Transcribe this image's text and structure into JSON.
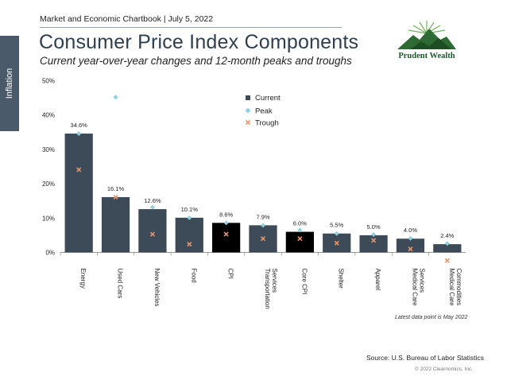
{
  "header": {
    "top_line": "Market and Economic Chartbook | July 5, 2022",
    "section_tab": "Inflation",
    "logo_text": "Prudent Wealth"
  },
  "footer": {
    "footnote": "Latest data point is May 2022",
    "source": "Source: U.S. Bureau of Labor Statistics",
    "copyright": "© 2022 Clearnomics, Inc."
  },
  "colors": {
    "current": "#3d4a58",
    "cpi_highlight": "#000000",
    "peak": "#8fd0dc",
    "trough": "#e8956a"
  },
  "chart_data": {
    "type": "bar",
    "title": "Consumer Price Index Components",
    "subtitle": "Current year-over-year changes and 12-month peaks and troughs",
    "ylim": [
      0,
      50
    ],
    "yticks": [
      "0%",
      "10%",
      "20%",
      "30%",
      "40%",
      "50%"
    ],
    "ytick_values": [
      0,
      10,
      20,
      30,
      40,
      50
    ],
    "legend": [
      "Current",
      "Peak",
      "Trough"
    ],
    "legend_position": "top-center",
    "categories": [
      "Energy",
      "Used Cars",
      "New Vehicles",
      "Food",
      "CPI",
      "Transportation Services",
      "Core CPI",
      "Shelter",
      "Apparel",
      "Medical Care Services",
      "Medical Care Commodities"
    ],
    "category_lines": [
      [
        "Energy"
      ],
      [
        "Used Cars"
      ],
      [
        "New Vehicles"
      ],
      [
        "Food"
      ],
      [
        "CPI"
      ],
      [
        "Transportation",
        "Services"
      ],
      [
        "Core CPI"
      ],
      [
        "Shelter"
      ],
      [
        "Apparel"
      ],
      [
        "Medical Care",
        "Services"
      ],
      [
        "Medical Care",
        "Commodities"
      ]
    ],
    "series": [
      {
        "name": "Current",
        "values": [
          34.6,
          16.1,
          12.6,
          10.1,
          8.6,
          7.9,
          6.0,
          5.5,
          5.0,
          4.0,
          2.4
        ]
      },
      {
        "name": "Peak",
        "values": [
          34.6,
          45.2,
          13.2,
          10.1,
          8.6,
          7.9,
          6.5,
          5.5,
          5.2,
          4.1,
          2.6
        ]
      },
      {
        "name": "Trough",
        "values": [
          24.1,
          16.1,
          5.3,
          2.4,
          5.3,
          4.0,
          4.0,
          2.7,
          3.5,
          1.0,
          -2.4
        ]
      }
    ],
    "value_labels": [
      "34.6%",
      "16.1%",
      "12.6%",
      "10.1%",
      "8.6%",
      "7.9%",
      "6.0%",
      "5.5%",
      "5.0%",
      "4.0%",
      "2.4%"
    ],
    "highlight_categories": [
      "CPI",
      "Core CPI"
    ]
  }
}
